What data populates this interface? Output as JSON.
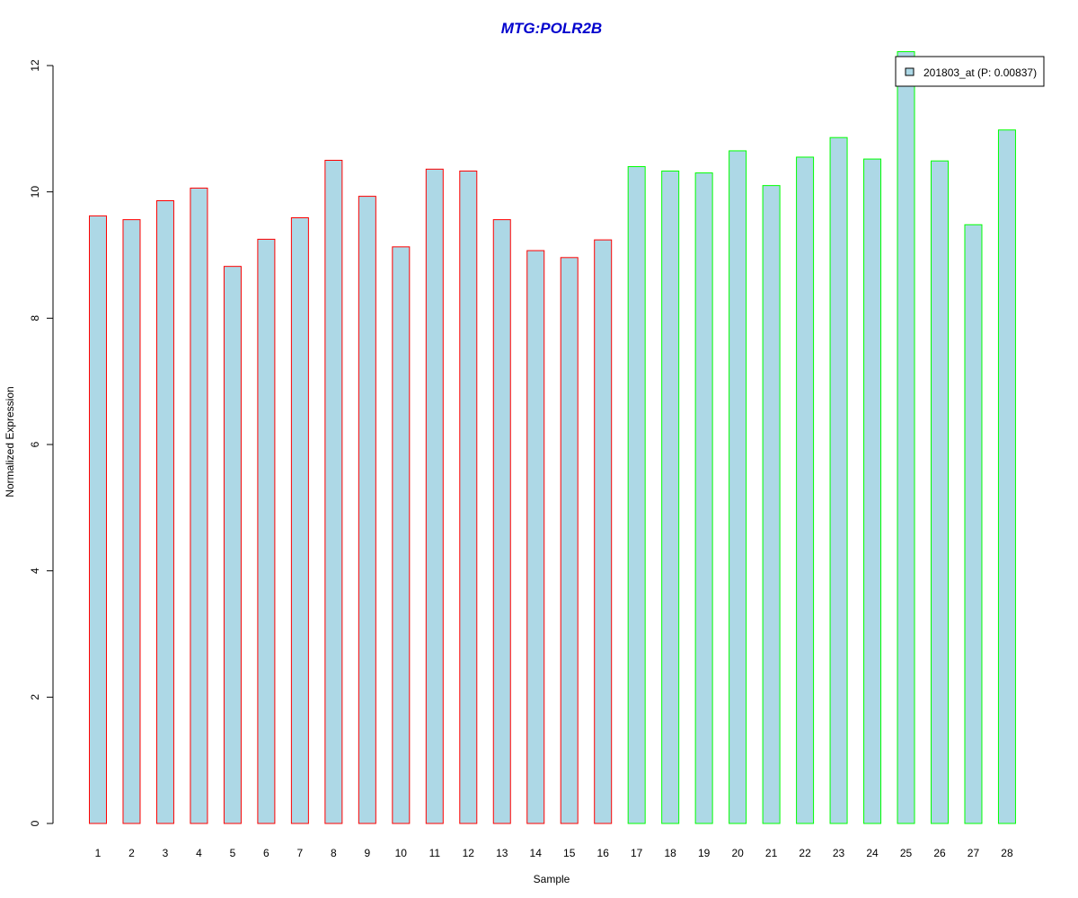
{
  "chart_data": {
    "type": "bar",
    "title": "MTG:POLR2B",
    "xlabel": "Sample",
    "ylabel": "Normalized Expression",
    "ylim": [
      0,
      12
    ],
    "yticks": [
      0,
      2,
      4,
      6,
      8,
      10,
      12
    ],
    "grid": false,
    "legend_position": "top-right",
    "categories": [
      "1",
      "2",
      "3",
      "4",
      "5",
      "6",
      "7",
      "8",
      "9",
      "10",
      "11",
      "12",
      "13",
      "14",
      "15",
      "16",
      "17",
      "18",
      "19",
      "20",
      "21",
      "22",
      "23",
      "24",
      "25",
      "26",
      "27",
      "28"
    ],
    "series": [
      {
        "name": "201803_at (P: 0.00837)",
        "values": [
          9.62,
          9.56,
          9.86,
          10.06,
          8.82,
          9.25,
          9.59,
          10.5,
          9.93,
          9.13,
          10.36,
          10.33,
          9.56,
          9.07,
          8.96,
          9.24,
          10.4,
          10.33,
          10.3,
          10.65,
          10.1,
          10.55,
          10.86,
          10.52,
          12.22,
          10.49,
          9.48,
          10.98
        ],
        "groups": [
          "a",
          "a",
          "a",
          "a",
          "a",
          "a",
          "a",
          "a",
          "a",
          "a",
          "a",
          "a",
          "a",
          "a",
          "a",
          "a",
          "b",
          "b",
          "b",
          "b",
          "b",
          "b",
          "b",
          "b",
          "b",
          "b",
          "b",
          "b"
        ]
      }
    ],
    "colors": {
      "bar_fill": "#add8e6",
      "group_a_border": "#ff0000",
      "group_b_border": "#00ff00",
      "title": "#0000cd",
      "axis": "#000000"
    }
  }
}
